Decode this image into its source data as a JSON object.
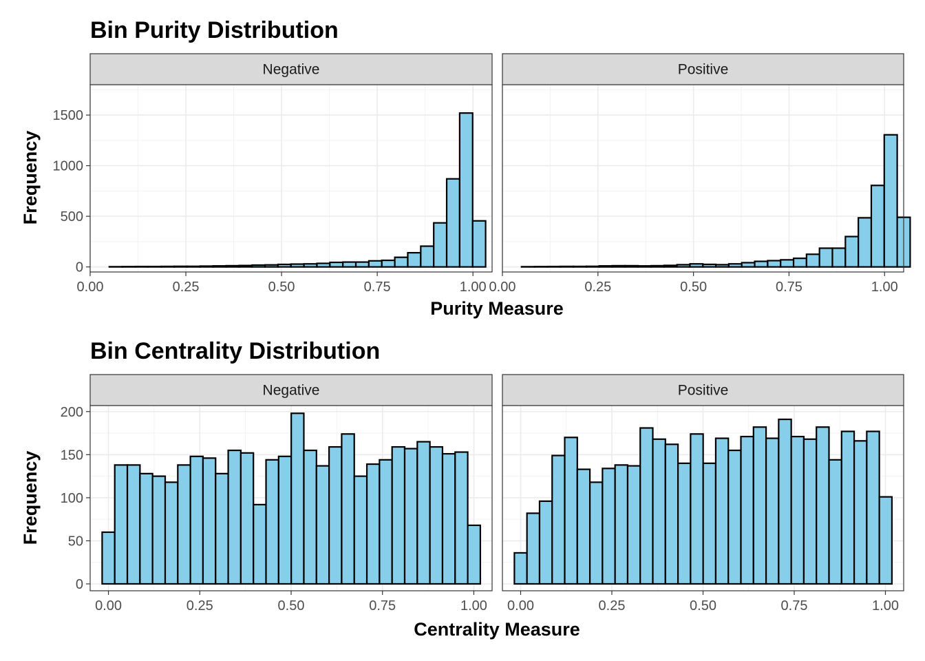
{
  "chart_data": [
    {
      "type": "bar",
      "title": "Bin Purity Distribution",
      "xlabel": "Purity Measure",
      "ylabel": "Frequency",
      "xlim": [
        0.0,
        1.05
      ],
      "ylim": [
        -50,
        1800
      ],
      "x_ticks": [
        0.0,
        0.25,
        0.5,
        0.75,
        1.0
      ],
      "x_tick_labels": [
        "0.00",
        "0.25",
        "0.50",
        "0.75",
        "1.00"
      ],
      "y_ticks": [
        0,
        500,
        1000,
        1500
      ],
      "y_tick_labels": [
        "0",
        "500",
        "1000",
        "1500"
      ],
      "bin_start": 0.05,
      "bin_width": 0.0339,
      "fill_color": "#87CEEB",
      "grid": true,
      "panels": [
        {
          "name": "Negative",
          "values": [
            2,
            3,
            4,
            4,
            5,
            6,
            6,
            8,
            10,
            12,
            14,
            18,
            20,
            25,
            28,
            30,
            35,
            45,
            48,
            48,
            60,
            65,
            95,
            140,
            205,
            435,
            870,
            1520,
            455
          ]
        },
        {
          "name": "Positive",
          "values": [
            2,
            3,
            4,
            5,
            5,
            6,
            10,
            12,
            12,
            10,
            12,
            15,
            22,
            30,
            25,
            22,
            30,
            42,
            55,
            62,
            70,
            85,
            125,
            185,
            185,
            300,
            485,
            805,
            1305,
            490
          ]
        }
      ]
    },
    {
      "type": "bar",
      "title": "Bin Centrality Distribution",
      "xlabel": "Centrality Measure",
      "ylabel": "Frequency",
      "xlim": [
        -0.05,
        1.05
      ],
      "ylim": [
        -8,
        207
      ],
      "x_ticks": [
        0.0,
        0.25,
        0.5,
        0.75,
        1.0
      ],
      "x_tick_labels": [
        "0.00",
        "0.25",
        "0.50",
        "0.75",
        "1.00"
      ],
      "y_ticks": [
        0,
        50,
        100,
        150,
        200
      ],
      "y_tick_labels": [
        "0",
        "50",
        "100",
        "150",
        "200"
      ],
      "bin_start": -0.0172,
      "bin_width": 0.0345,
      "fill_color": "#87CEEB",
      "grid": true,
      "panels": [
        {
          "name": "Negative",
          "values": [
            60,
            138,
            138,
            128,
            125,
            118,
            138,
            148,
            146,
            128,
            155,
            152,
            92,
            144,
            148,
            198,
            155,
            137,
            159,
            174,
            125,
            139,
            144,
            159,
            157,
            165,
            159,
            151,
            153,
            68
          ]
        },
        {
          "name": "Positive",
          "values": [
            36,
            82,
            96,
            149,
            170,
            133,
            118,
            134,
            138,
            137,
            181,
            168,
            162,
            140,
            174,
            140,
            169,
            155,
            171,
            182,
            169,
            191,
            171,
            168,
            182,
            144,
            177,
            166,
            177,
            101
          ]
        }
      ]
    }
  ]
}
